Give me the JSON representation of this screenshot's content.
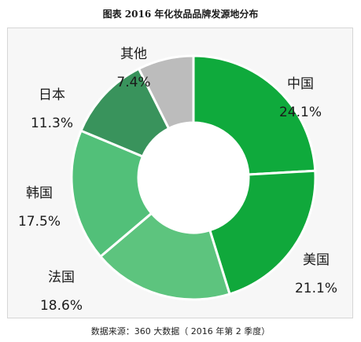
{
  "title": "图表    2016 年化妆品品牌发源地分布",
  "source": "数据来源：360 大数据（ 2016 年第 2 季度）",
  "chart_data": {
    "type": "pie",
    "donut": true,
    "slices": [
      {
        "label": "中国",
        "value": 24.1,
        "display": "24.1%",
        "color": "#0faa3c"
      },
      {
        "label": "美国",
        "value": 21.1,
        "display": "21.1%",
        "color": "#10a83b"
      },
      {
        "label": "法国",
        "value": 18.6,
        "display": "18.6%",
        "color": "#5dc47e"
      },
      {
        "label": "韩国",
        "value": 17.5,
        "display": "17.5%",
        "color": "#52c079"
      },
      {
        "label": "日本",
        "value": 11.3,
        "display": "11.3%",
        "color": "#39935c"
      },
      {
        "label": "其他",
        "value": 7.4,
        "display": "7.4%",
        "color": "#bcbcbc"
      }
    ]
  }
}
